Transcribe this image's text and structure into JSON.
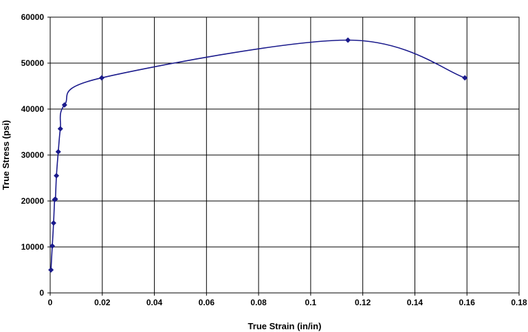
{
  "chart_data": {
    "type": "scatter",
    "xlabel": "True Strain (in/in)",
    "ylabel": "True Stress (psi)",
    "xlim": [
      0,
      0.18
    ],
    "ylim": [
      0,
      60000
    ],
    "xticks": [
      0,
      0.02,
      0.04,
      0.06,
      0.08,
      0.1,
      0.12,
      0.14,
      0.16,
      0.18
    ],
    "xtick_labels": [
      "0",
      "0.02",
      "0.04",
      "0.06",
      "0.08",
      "0.1",
      "0.12",
      "0.14",
      "0.16",
      "0.18"
    ],
    "yticks": [
      0,
      10000,
      20000,
      30000,
      40000,
      50000,
      60000
    ],
    "ytick_labels": [
      "0",
      "10000",
      "20000",
      "30000",
      "40000",
      "50000",
      "60000"
    ],
    "grid": true,
    "legend": "none",
    "line_style": "smoothed line with diamond markers",
    "color": "#1a1a8c",
    "series": [
      {
        "points": [
          [
            0.0003,
            5000
          ],
          [
            0.0008,
            10200
          ],
          [
            0.0013,
            15200
          ],
          [
            0.0017,
            20300
          ],
          [
            0.002,
            20400
          ],
          [
            0.0024,
            25500
          ],
          [
            0.0031,
            30700
          ],
          [
            0.0039,
            35700
          ],
          [
            0.0055,
            40900
          ],
          [
            0.0198,
            46800
          ],
          [
            0.1143,
            55000
          ],
          [
            0.1592,
            46800
          ]
        ]
      }
    ]
  }
}
